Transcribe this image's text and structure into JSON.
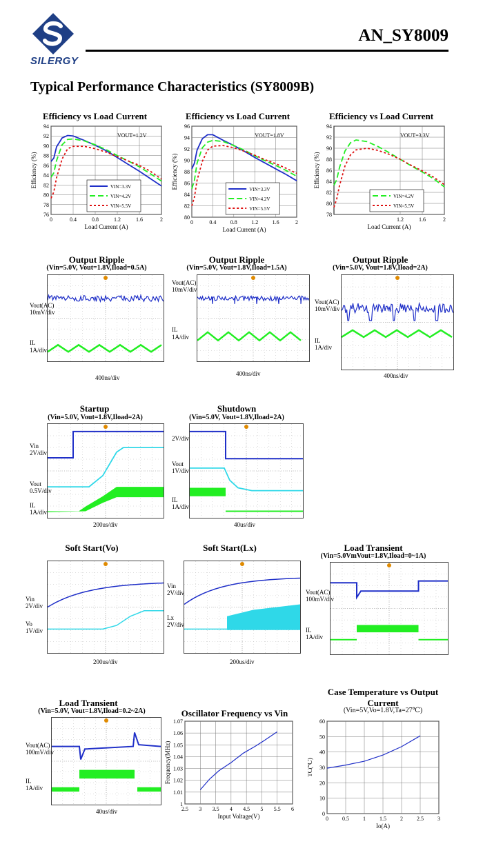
{
  "header": {
    "doc_id": "AN_SY8009",
    "brand": "SILERGY"
  },
  "section_title": "Typical Performance Characteristics (SY8009B)",
  "colors": {
    "blue": "#1f2fc8",
    "cyan": "#2fd8e8",
    "green": "#22ee22",
    "red": "#dd1111",
    "marker": "#e08a00",
    "brand": "#1f3f85"
  },
  "chart_data": [
    {
      "id": "eff1",
      "type": "line",
      "title": "Efficiency vs Load Current",
      "annotation": "VOUT=1.2V",
      "xlabel": "Load Current (A)",
      "ylabel": "Efficiency (%)",
      "xlim": [
        0,
        2
      ],
      "ylim": [
        76,
        94
      ],
      "xticks": [
        "0",
        "0.4",
        "0.8",
        "1.2",
        "1.6",
        "2"
      ],
      "yticks": [
        "76",
        "78",
        "80",
        "82",
        "84",
        "86",
        "88",
        "90",
        "92",
        "94"
      ],
      "series": [
        {
          "name": "VIN=3.3V",
          "x": [
            0,
            0.05,
            0.1,
            0.2,
            0.3,
            0.4,
            0.6,
            0.8,
            1.0,
            1.2,
            1.4,
            1.6,
            1.8,
            2.0
          ],
          "y": [
            86.8,
            87.5,
            89.8,
            91.6,
            92.1,
            92.0,
            91.1,
            90.1,
            89.0,
            87.6,
            86.2,
            84.8,
            83.3,
            81.8
          ]
        },
        {
          "name": "VIN=4.2V",
          "x": [
            0,
            0.05,
            0.1,
            0.2,
            0.3,
            0.4,
            0.6,
            0.8,
            1.0,
            1.2,
            1.4,
            1.6,
            1.8,
            2.0
          ],
          "y": [
            83.6,
            84.5,
            87.0,
            90.2,
            91.3,
            91.4,
            91.0,
            90.2,
            89.2,
            88.0,
            86.9,
            85.7,
            84.3,
            82.8
          ]
        },
        {
          "name": "VIN=5.5V",
          "x": [
            0,
            0.05,
            0.1,
            0.2,
            0.3,
            0.4,
            0.6,
            0.8,
            1.0,
            1.2,
            1.4,
            1.6,
            1.8,
            2.0
          ],
          "y": [
            79.3,
            80.6,
            83.5,
            87.3,
            89.4,
            89.9,
            89.9,
            89.4,
            88.7,
            87.8,
            86.9,
            86.0,
            84.8,
            83.2
          ]
        }
      ]
    },
    {
      "id": "eff2",
      "type": "line",
      "title": "Efficiency vs Load Current",
      "annotation": "VOUT=1.8V",
      "xlabel": "Load Current (A)",
      "ylabel": "Efficiency (%)",
      "xlim": [
        0,
        2
      ],
      "ylim": [
        80,
        96
      ],
      "xticks": [
        "0",
        "0.4",
        "0.8",
        "1.2",
        "1.6",
        "2"
      ],
      "yticks": [
        "80",
        "82",
        "84",
        "86",
        "88",
        "90",
        "92",
        "94",
        "96"
      ],
      "series": [
        {
          "name": "VIN=3.3V",
          "x": [
            0,
            0.05,
            0.1,
            0.2,
            0.3,
            0.4,
            0.6,
            0.8,
            1.0,
            1.2,
            1.4,
            1.6,
            1.8,
            2.0
          ],
          "y": [
            88.5,
            89.5,
            91.8,
            93.8,
            94.5,
            94.5,
            93.5,
            92.6,
            91.6,
            90.5,
            89.5,
            88.5,
            87.5,
            86.4
          ]
        },
        {
          "name": "VIN=4.2V",
          "x": [
            0,
            0.05,
            0.1,
            0.2,
            0.3,
            0.4,
            0.6,
            0.8,
            1.0,
            1.2,
            1.4,
            1.6,
            1.8,
            2.0
          ],
          "y": [
            85.0,
            86.5,
            89.5,
            92.2,
            93.2,
            93.5,
            93.3,
            92.6,
            91.8,
            90.8,
            89.9,
            89.1,
            88.2,
            87.2
          ]
        },
        {
          "name": "VIN=5.5V",
          "x": [
            0,
            0.05,
            0.1,
            0.2,
            0.3,
            0.4,
            0.6,
            0.8,
            1.0,
            1.2,
            1.4,
            1.6,
            1.8,
            2.0
          ],
          "y": [
            82.0,
            83.5,
            86.5,
            89.8,
            91.8,
            92.5,
            92.6,
            92.2,
            91.6,
            90.9,
            90.1,
            89.4,
            88.6,
            87.7
          ]
        }
      ]
    },
    {
      "id": "eff3",
      "type": "line",
      "title": "Efficiency vs Load Current",
      "annotation": "VOUT=3.3V",
      "xlabel": "Load Current (A)",
      "ylabel": "Efficiency (%)",
      "xlim": [
        0,
        2
      ],
      "ylim": [
        78,
        94
      ],
      "xticks": [
        "1.2",
        "1.6",
        "2"
      ],
      "yticks": [
        "78",
        "80",
        "82",
        "84",
        "86",
        "88",
        "90",
        "92",
        "94"
      ],
      "series": [
        {
          "name": "VIN=4.2V",
          "x": [
            0,
            0.05,
            0.1,
            0.2,
            0.3,
            0.4,
            0.6,
            0.8,
            1.0,
            1.2,
            1.4,
            1.6,
            1.8,
            2.0
          ],
          "y": [
            83.3,
            84.3,
            86.5,
            89.5,
            91.0,
            91.5,
            91.2,
            90.3,
            89.2,
            88.0,
            86.8,
            85.7,
            84.5,
            83.0
          ]
        },
        {
          "name": "VIN=5.5V",
          "x": [
            0,
            0.05,
            0.1,
            0.2,
            0.3,
            0.4,
            0.6,
            0.8,
            1.0,
            1.2,
            1.4,
            1.6,
            1.8,
            2.0
          ],
          "y": [
            79.3,
            80.8,
            83.2,
            86.8,
            88.8,
            89.7,
            90.0,
            89.6,
            88.9,
            88.0,
            86.9,
            85.9,
            84.8,
            83.4
          ]
        }
      ]
    },
    {
      "id": "osc",
      "type": "line",
      "title": "Oscillator Frequency vs Vin",
      "xlabel": "Input Voltage(V)",
      "ylabel": "Frequency(MHz)",
      "xlim": [
        2.5,
        6
      ],
      "ylim": [
        1.0,
        1.07
      ],
      "xticks": [
        "2.5",
        "3",
        "3.5",
        "4",
        "4.5",
        "5",
        "5.5",
        "6"
      ],
      "yticks": [
        "1",
        "1.01",
        "1.02",
        "1.03",
        "1.04",
        "1.05",
        "1.06",
        "1.07"
      ],
      "series": [
        {
          "name": "Frequency",
          "x": [
            3.0,
            3.3,
            3.6,
            4.0,
            4.4,
            4.8,
            5.1,
            5.5
          ],
          "y": [
            1.012,
            1.021,
            1.028,
            1.035,
            1.043,
            1.049,
            1.054,
            1.061
          ]
        }
      ]
    },
    {
      "id": "temp",
      "type": "line",
      "title": "Case Temperature vs Output Current",
      "subtitle": "(Vin=5V,Vo=1.8V,Ta=27℃)",
      "xlabel": "Io(A)",
      "ylabel": "TC(℃)",
      "xlim": [
        0,
        3
      ],
      "ylim": [
        0,
        60
      ],
      "xticks": [
        "0",
        "0.5",
        "1",
        "1.5",
        "2",
        "2.5",
        "3"
      ],
      "yticks": [
        "0",
        "10",
        "20",
        "30",
        "40",
        "50",
        "60"
      ],
      "series": [
        {
          "name": "TC",
          "x": [
            0,
            0.5,
            1.0,
            1.5,
            2.0,
            2.5
          ],
          "y": [
            29.5,
            31.5,
            34.0,
            38.0,
            43.5,
            50.5
          ]
        }
      ]
    }
  ],
  "scopes": [
    {
      "id": "ripple1",
      "title": "Output Ripple",
      "subtitle": "(Vin=5.0V, Vout=1.8V,Iload=0.5A)",
      "labels": [
        "Vout(AC)",
        "10mV/div",
        "IL",
        "1A/div"
      ],
      "timebase": "400ns/div"
    },
    {
      "id": "ripple2",
      "title": "Output Ripple",
      "subtitle": "(Vin=5.0V, Vout=1.8V,Iload=1.5A)",
      "labels": [
        "Vout(AC)",
        "10mV/div",
        "IL",
        "1A/div"
      ],
      "timebase": "400ns/div"
    },
    {
      "id": "ripple3",
      "title": "Output Ripple",
      "subtitle": "(Vin=5.0V, Vout=1.8V,Iload=2A)",
      "labels": [
        "Vout(AC)",
        "10mV/div",
        "IL",
        "1A/div"
      ],
      "timebase": "400ns/div"
    },
    {
      "id": "startup",
      "title": "Startup",
      "subtitle": "(Vin=5.0V, Vout=1.8V,Iload=2A)",
      "labels": [
        "Vin",
        "2V/div",
        "Vout",
        "0.5V/div",
        "IL",
        "1A/div"
      ],
      "timebase": "200us/div"
    },
    {
      "id": "shutdown",
      "title": "Shutdown",
      "subtitle": "(Vin=5.0V, Vout=1.8V,Iload=2A)",
      "labels": [
        "2V/div",
        "Vout",
        "1V/div",
        "IL",
        "1A/div"
      ],
      "timebase": "40us/div"
    },
    {
      "id": "ssvo",
      "title": "Soft Start(Vo)",
      "subtitle": "",
      "labels": [
        "Vin",
        "2V/div",
        "Vo",
        "1V/div"
      ],
      "timebase": "200us/div"
    },
    {
      "id": "sslx",
      "title": "Soft Start(Lx)",
      "subtitle": "",
      "labels": [
        "Vin",
        "2V/div",
        "Lx",
        "2V/div"
      ],
      "timebase": "200us/div"
    },
    {
      "id": "lt1",
      "title": "Load Transient",
      "subtitle": "(Vin=5.0VmVout=1.8V,Iload=0~1A)",
      "labels": [
        "Vout(AC)",
        "100mV/div",
        "IL",
        "1A/div"
      ],
      "timebase": ""
    },
    {
      "id": "lt2",
      "title": "Load Transient",
      "subtitle": "(Vin=5.0V, Vout=1.8V,Iload=0.2~2A)",
      "labels": [
        "Vout(AC)",
        "100mV/div",
        "IL",
        "1A/div"
      ],
      "timebase": "40us/div"
    }
  ]
}
